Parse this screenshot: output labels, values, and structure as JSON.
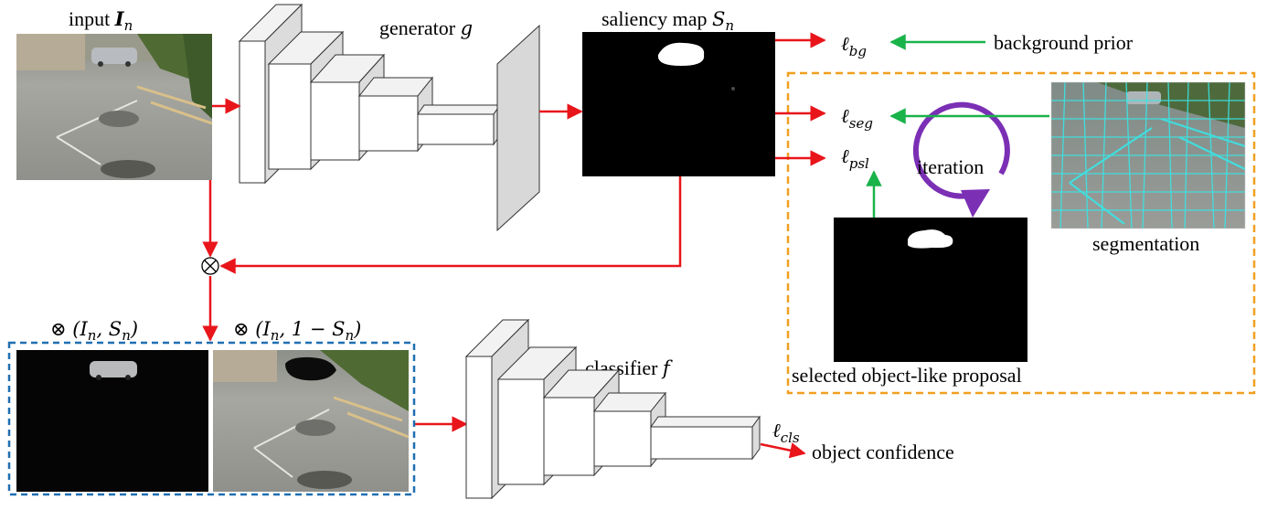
{
  "labels": {
    "input": "input ",
    "input_sym": "I",
    "input_sub": "n",
    "generator": "generator ",
    "generator_sym": "g",
    "saliency": "saliency map ",
    "saliency_sym": "S",
    "saliency_sub": "n",
    "classifier": "classifier ",
    "classifier_sym": "f",
    "object_confidence": "object confidence",
    "background_prior": "background prior",
    "segmentation": "segmentation",
    "iteration": "iteration",
    "selected_proposal": "selected object-like proposal",
    "product_symbol": "⊗",
    "masked_fg": "⊗ (I",
    "masked_fg_rest": ", S",
    "masked_fg_close": ")",
    "masked_bg": "⊗ (I",
    "masked_bg_rest": ", 1 − S",
    "masked_bg_close": ")",
    "sub_n": "n"
  },
  "losses": {
    "bg": {
      "symbol": "ℓ",
      "sub": "bg"
    },
    "seg": {
      "symbol": "ℓ",
      "sub": "seg"
    },
    "psl": {
      "symbol": "ℓ",
      "sub": "psl"
    },
    "cls": {
      "symbol": "ℓ",
      "sub": "cls"
    }
  },
  "colors": {
    "forward_arrow": "#e8151b",
    "supervision_arrow": "#19b34a",
    "iteration_arrow": "#7b2fb5",
    "masked_box_border": "#1f6fb2",
    "training_box_border": "#f0a020"
  },
  "icons": {
    "product": "circled-times-icon",
    "iteration": "circular-arrow-icon"
  }
}
